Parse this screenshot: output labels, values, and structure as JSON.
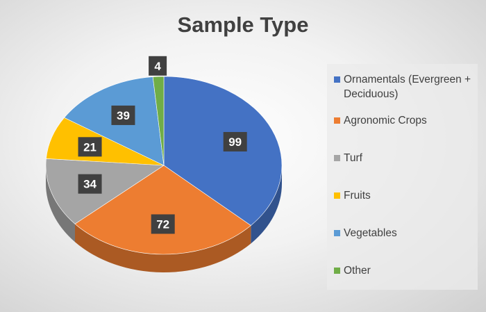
{
  "chart_data": {
    "type": "pie",
    "title": "Sample Type",
    "three_d": true,
    "legend_position": "right",
    "categories": [
      "Ornamentals (Evergreen + Deciduous)",
      "Agronomic Crops",
      "Turf",
      "Fruits",
      "Vegetables",
      "Other"
    ],
    "values": [
      99,
      72,
      34,
      21,
      39,
      4
    ],
    "data_labels": [
      "99",
      "72",
      "34",
      "21",
      "39",
      "4"
    ],
    "colors": [
      "#4472c4",
      "#ed7d31",
      "#a5a5a5",
      "#ffc000",
      "#5b9bd5",
      "#70ad47"
    ]
  }
}
